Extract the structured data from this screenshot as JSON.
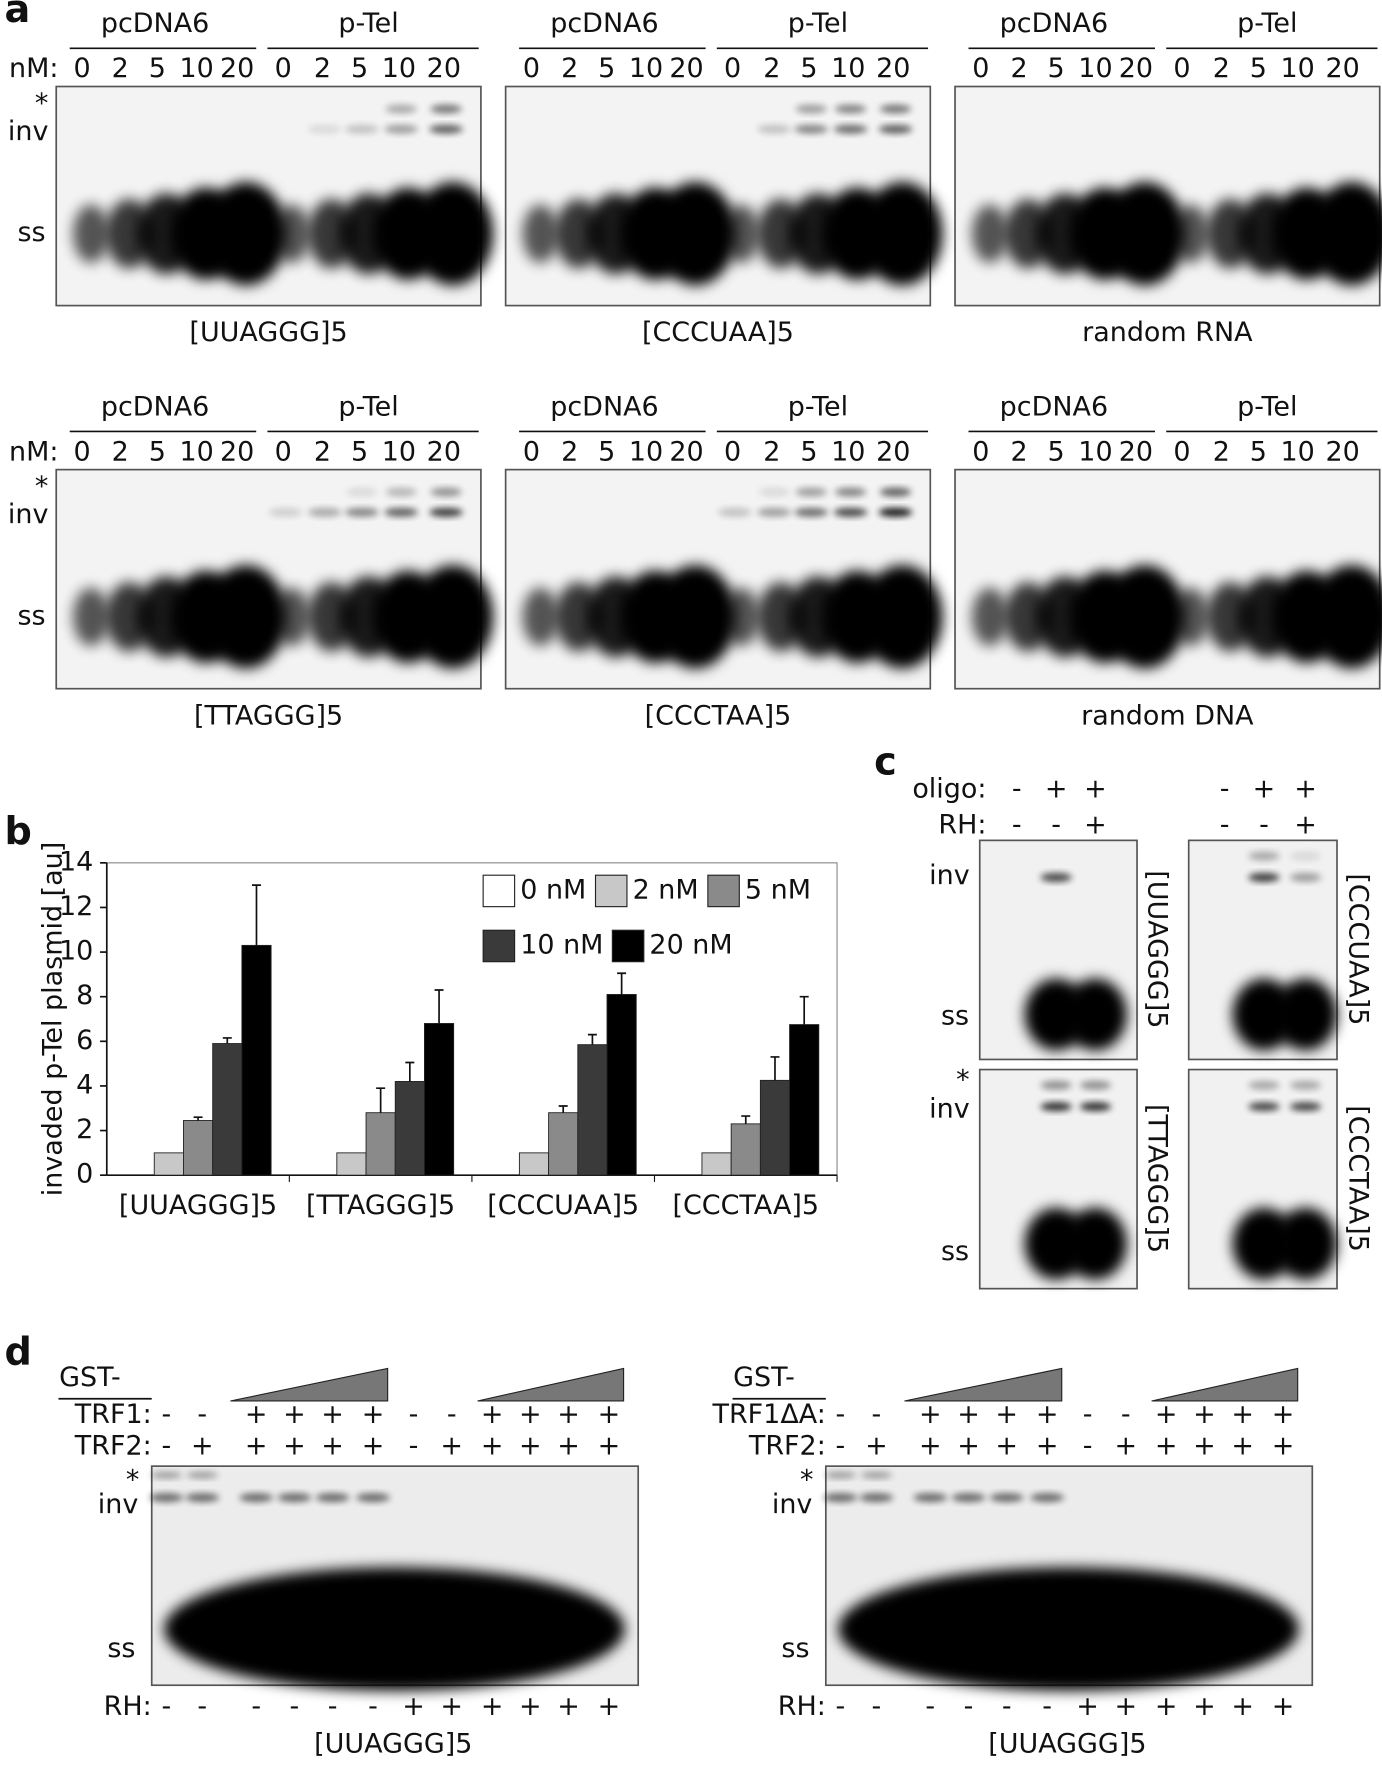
{
  "panel_a": {
    "label": "a",
    "nm_label": "nM:",
    "groups": [
      "pcDNA6",
      "p-Tel"
    ],
    "concs": [
      "0",
      "2",
      "5",
      "10",
      "20"
    ],
    "bands": {
      "star": "*",
      "inv": "inv",
      "ss": "ss"
    },
    "captions": [
      "[UUAGGG]5",
      "[CCCUAA]5",
      "random RNA",
      "[TTAGGG]5",
      "[CCCTAA]5",
      "random DNA"
    ]
  },
  "chart_data": {
    "type": "bar",
    "label": "b",
    "y_label": "invaded p-Tel plasmid [au]",
    "categories": [
      "[UUAGGG]5",
      "[TTAGGG]5",
      "[CCCUAA]5",
      "[CCCTAA]5"
    ],
    "series": [
      {
        "name": "0 nM",
        "color": "#ffffff",
        "values": [
          0,
          0,
          0,
          0
        ],
        "errors": [
          null,
          null,
          null,
          null
        ]
      },
      {
        "name": "2 nM",
        "color": "#c8c8c8",
        "values": [
          1,
          1,
          1,
          1
        ],
        "errors": [
          null,
          null,
          null,
          null
        ]
      },
      {
        "name": "5 nM",
        "color": "#8a8a8a",
        "values": [
          2.45,
          2.8,
          2.8,
          2.3
        ],
        "errors": [
          0.15,
          1.1,
          0.3,
          0.35
        ]
      },
      {
        "name": "10 nM",
        "color": "#3a3a3a",
        "values": [
          5.9,
          4.2,
          5.85,
          4.25
        ],
        "errors": [
          0.25,
          0.85,
          0.45,
          1.05
        ]
      },
      {
        "name": "20 nM",
        "color": "#000000",
        "values": [
          10.3,
          6.8,
          8.1,
          6.75
        ],
        "errors": [
          2.7,
          1.5,
          0.95,
          1.25
        ]
      }
    ],
    "ylim": [
      0,
      14
    ],
    "yticks": [
      0,
      2,
      4,
      6,
      8,
      10,
      12,
      14
    ],
    "grid": false
  },
  "panel_c": {
    "label": "c",
    "rows": [
      {
        "label": "oligo:",
        "signs": [
          "-",
          "+",
          "+"
        ]
      },
      {
        "label": "RH:",
        "signs": [
          "-",
          "-",
          "+"
        ]
      }
    ],
    "bands": {
      "star": "*",
      "inv": "inv",
      "ss": "ss"
    },
    "captions": [
      "[UUAGGG]5",
      "[CCCUAA]5",
      "[TTAGGG]5",
      "[CCCTAA]5"
    ]
  },
  "panel_d": {
    "label": "d",
    "gst": "GST-",
    "proteins": [
      "TRF1:",
      "TRF1ΔA:"
    ],
    "protein_signs": [
      "-",
      "-",
      "+",
      "+",
      "+",
      "+",
      "-",
      "-",
      "+",
      "+",
      "+",
      "+"
    ],
    "trf2_label": "TRF2:",
    "trf2_signs": [
      "-",
      "+",
      "+",
      "+",
      "+",
      "+",
      "-",
      "+",
      "+",
      "+",
      "+",
      "+"
    ],
    "rh_label": "RH:",
    "rh_signs": [
      "-",
      "-",
      "-",
      "-",
      "-",
      "-",
      "+",
      "+",
      "+",
      "+",
      "+",
      "+"
    ],
    "bands": {
      "star": "*",
      "inv": "inv",
      "ss": "ss"
    },
    "caption": "[UUAGGG]5"
  }
}
